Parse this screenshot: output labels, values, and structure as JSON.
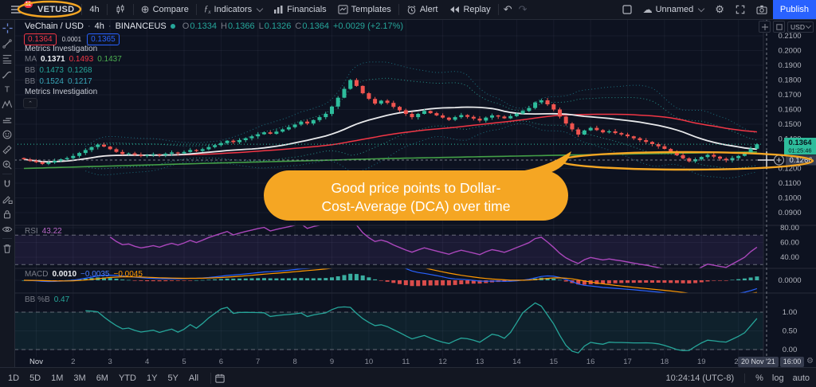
{
  "icons": {
    "undo": "↶",
    "redo": "↷",
    "compare": "⊕",
    "cloud": "☁",
    "gear": "⚙"
  },
  "colors": {
    "up_candle": "#2EBD9C",
    "down_candle": "#F0544F",
    "annotation_orange": "#F5A623",
    "publish_blue": "#2962FF",
    "current_price_label": "#2EBD9C",
    "rsi_purple": "#AB47BC",
    "macd_blue": "#2962FF",
    "macd_signal_orange": "#FF9800",
    "bbp_teal": "#26A69A"
  },
  "topbar": {
    "menu_badge": "11",
    "symbol": "VETUSD",
    "interval": "4h",
    "compare": "Compare",
    "indicators": "Indicators",
    "financials": "Financials",
    "templates": "Templates",
    "alert": "Alert",
    "replay": "Replay",
    "layout_name": "Unnamed",
    "publish": "Publish"
  },
  "header": {
    "symbol_title": "VeChain / USD",
    "sep": "·",
    "interval": "4h",
    "exchange": "BINANCEUS",
    "ohlc": {
      "o_label": "O",
      "o": "0.1334",
      "h_label": "H",
      "h": "0.1366",
      "l_label": "L",
      "l": "0.1326",
      "c_label": "C",
      "c": "0.1364",
      "change": "+0.0029 (+2.17%)"
    },
    "sell": "0.1364",
    "spread": "0.0001",
    "buy": "0.1365"
  },
  "legend": {
    "metrics1": "Metrics Investigation",
    "ma": {
      "label": "MA",
      "v1": "0.1371",
      "v2": "0.1493",
      "v3": "0.1437"
    },
    "bb1": {
      "label": "BB",
      "v1": "0.1473",
      "v2": "0.1268"
    },
    "bb2": {
      "label": "BB",
      "v1": "0.1524",
      "v2": "0.1217"
    },
    "metrics2": "Metrics Investigation",
    "collapse": "⌃"
  },
  "panels": {
    "rsi": {
      "label": "RSI",
      "value": "43.22",
      "ticks": [
        "80.00",
        "60.00",
        "40.00"
      ]
    },
    "macd": {
      "label": "MACD",
      "v1": "0.0010",
      "v2": "−0.0035",
      "v3": "−0.0045",
      "tick": "0.0000"
    },
    "bbp": {
      "label": "BB %B",
      "value": "0.47",
      "ticks": [
        "1.00",
        "0.50",
        "0.00"
      ]
    }
  },
  "axis": {
    "currency": "USD",
    "last_price": "0.1364",
    "countdown": "01:25:46",
    "crosshair_price": "0.1266",
    "crosshair_date": "20 Nov '21",
    "crosshair_time": "16:00"
  },
  "timebar": {
    "ranges": [
      "1D",
      "5D",
      "1M",
      "3M",
      "6M",
      "YTD",
      "1Y",
      "5Y",
      "All"
    ],
    "clock": "10:24:14 (UTC-8)",
    "pct": "%",
    "log": "log",
    "auto": "auto"
  },
  "callout": {
    "line1": "Good price points to Dollar-",
    "line2": "Cost-Average (DCA) over time"
  },
  "chart_data": {
    "type": "candlestick",
    "symbol": "VETUSD",
    "exchange": "BINANCEUS",
    "interval": "4h",
    "title": "VeChain / USD · 4h · BINANCEUS",
    "visible_range": "Nov 1 - Nov 20, 2021",
    "price_axis": {
      "min": 0.088,
      "max": 0.212,
      "ticks": [
        0.21,
        0.2,
        0.19,
        0.18,
        0.17,
        0.16,
        0.15,
        0.14,
        0.12,
        0.11,
        0.1,
        0.09
      ]
    },
    "time_ticks": [
      "Nov",
      "2",
      "3",
      "4",
      "5",
      "6",
      "7",
      "8",
      "9",
      "10",
      "11",
      "12",
      "13",
      "14",
      "15",
      "16",
      "17",
      "18",
      "19",
      "20"
    ],
    "estimated": true,
    "candles_4h_closes": [
      0.1262,
      0.125,
      0.1242,
      0.123,
      0.124,
      0.1252,
      0.1262,
      0.127,
      0.1285,
      0.1305,
      0.1325,
      0.1345,
      0.1362,
      0.1348,
      0.133,
      0.1312,
      0.1298,
      0.1302,
      0.1292,
      0.1285,
      0.129,
      0.1296,
      0.129,
      0.13,
      0.1308,
      0.1302,
      0.1312,
      0.1325,
      0.1318,
      0.133,
      0.1345,
      0.1358,
      0.1372,
      0.1388,
      0.1378,
      0.1392,
      0.1405,
      0.1418,
      0.1432,
      0.1445,
      0.1435,
      0.145,
      0.1465,
      0.148,
      0.1498,
      0.1518,
      0.1505,
      0.1528,
      0.1548,
      0.157,
      0.162,
      0.168,
      0.174,
      0.18,
      0.176,
      0.171,
      0.1672,
      0.164,
      0.166,
      0.1645,
      0.1618,
      0.1595,
      0.157,
      0.1548,
      0.157,
      0.159,
      0.1575,
      0.156,
      0.1545,
      0.153,
      0.1548,
      0.1562,
      0.155,
      0.1538,
      0.1525,
      0.1545,
      0.156,
      0.1552,
      0.154,
      0.1555,
      0.1572,
      0.159,
      0.161,
      0.1648,
      0.1662,
      0.1635,
      0.16,
      0.1552,
      0.1505,
      0.1465,
      0.143,
      0.1458,
      0.1475,
      0.146,
      0.1445,
      0.1452,
      0.144,
      0.143,
      0.1418,
      0.1405,
      0.1392,
      0.138,
      0.1365,
      0.135,
      0.1332,
      0.1312,
      0.129,
      0.1268,
      0.1248,
      0.1262,
      0.1278,
      0.1292,
      0.128,
      0.1266,
      0.1255,
      0.127,
      0.1285,
      0.1302,
      0.1334,
      0.1364
    ],
    "last_candle_ohlc": {
      "o": 0.1334,
      "h": 0.1366,
      "l": 0.1326,
      "c": 0.1364
    },
    "overlays": {
      "ma_white_period": 25,
      "ma_red_period": 55,
      "green_line_anchors": [
        [
          0,
          0.12
        ],
        [
          30,
          0.1235
        ],
        [
          60,
          0.1268
        ],
        [
          90,
          0.1292
        ],
        [
          119,
          0.1312
        ]
      ],
      "bollinger": {
        "period": 20,
        "inner_mult": 2,
        "outer_mult": 3,
        "inner_latest": [
          0.1473,
          0.1268
        ],
        "outer_latest": [
          0.1524,
          0.1217
        ]
      }
    },
    "indicators": {
      "rsi": {
        "period": 14,
        "latest": 43.22,
        "band": [
          30,
          70
        ]
      },
      "macd": {
        "fast": 12,
        "slow": 26,
        "signal": 9,
        "latest": {
          "hist": 0.001,
          "macd": -0.0035,
          "signal": -0.0045
        }
      },
      "bb_percent_b": {
        "latest": 0.47,
        "band": [
          0,
          1
        ]
      }
    },
    "crosshair": {
      "price": 0.1266,
      "time": "20 Nov '21 16:00"
    },
    "highlighted_price_level": 0.1266,
    "current_price": 0.1364
  }
}
